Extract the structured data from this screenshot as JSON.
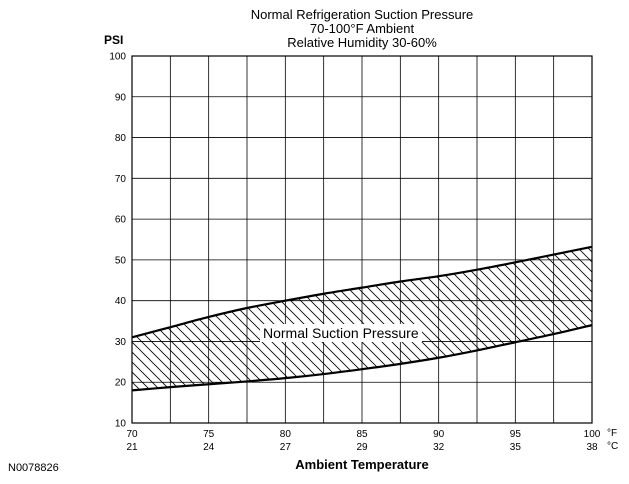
{
  "chart_data": {
    "type": "area",
    "title_lines": [
      "Normal Refrigeration Suction Pressure",
      "70-100°F Ambient",
      "Relative Humidity 30-60%"
    ],
    "ylabel": "PSI",
    "xlabel": "Ambient Temperature",
    "x_unit_primary": "°F",
    "x_unit_secondary": "°C",
    "ylim": [
      10,
      100
    ],
    "xlim": [
      70,
      100
    ],
    "y_ticks": [
      "10",
      "20",
      "30",
      "40",
      "50",
      "60",
      "70",
      "80",
      "90",
      "100"
    ],
    "x_ticks_f": [
      "70",
      "75",
      "80",
      "85",
      "90",
      "95",
      "100"
    ],
    "x_ticks_c": [
      "21",
      "24",
      "27",
      "29",
      "32",
      "35",
      "38"
    ],
    "grid": true,
    "band_label": "Normal Suction Pressure",
    "series": [
      {
        "role": "upper",
        "x": [
          70,
          72.5,
          75,
          77.5,
          80,
          82.5,
          85,
          87.5,
          90,
          92.5,
          95,
          97.5,
          100
        ],
        "values": [
          31,
          33.5,
          36,
          38.2,
          40,
          41.7,
          43.2,
          44.7,
          46,
          47.6,
          49.4,
          51.3,
          53.2
        ]
      },
      {
        "role": "lower",
        "x": [
          70,
          72.5,
          75,
          77.5,
          80,
          82.5,
          85,
          87.5,
          90,
          92.5,
          95,
          97.5,
          100
        ],
        "values": [
          18,
          18.8,
          19.5,
          20.2,
          21,
          22,
          23.2,
          24.5,
          26,
          27.8,
          29.8,
          31.8,
          34
        ]
      }
    ]
  },
  "figure_id": "N0078826"
}
